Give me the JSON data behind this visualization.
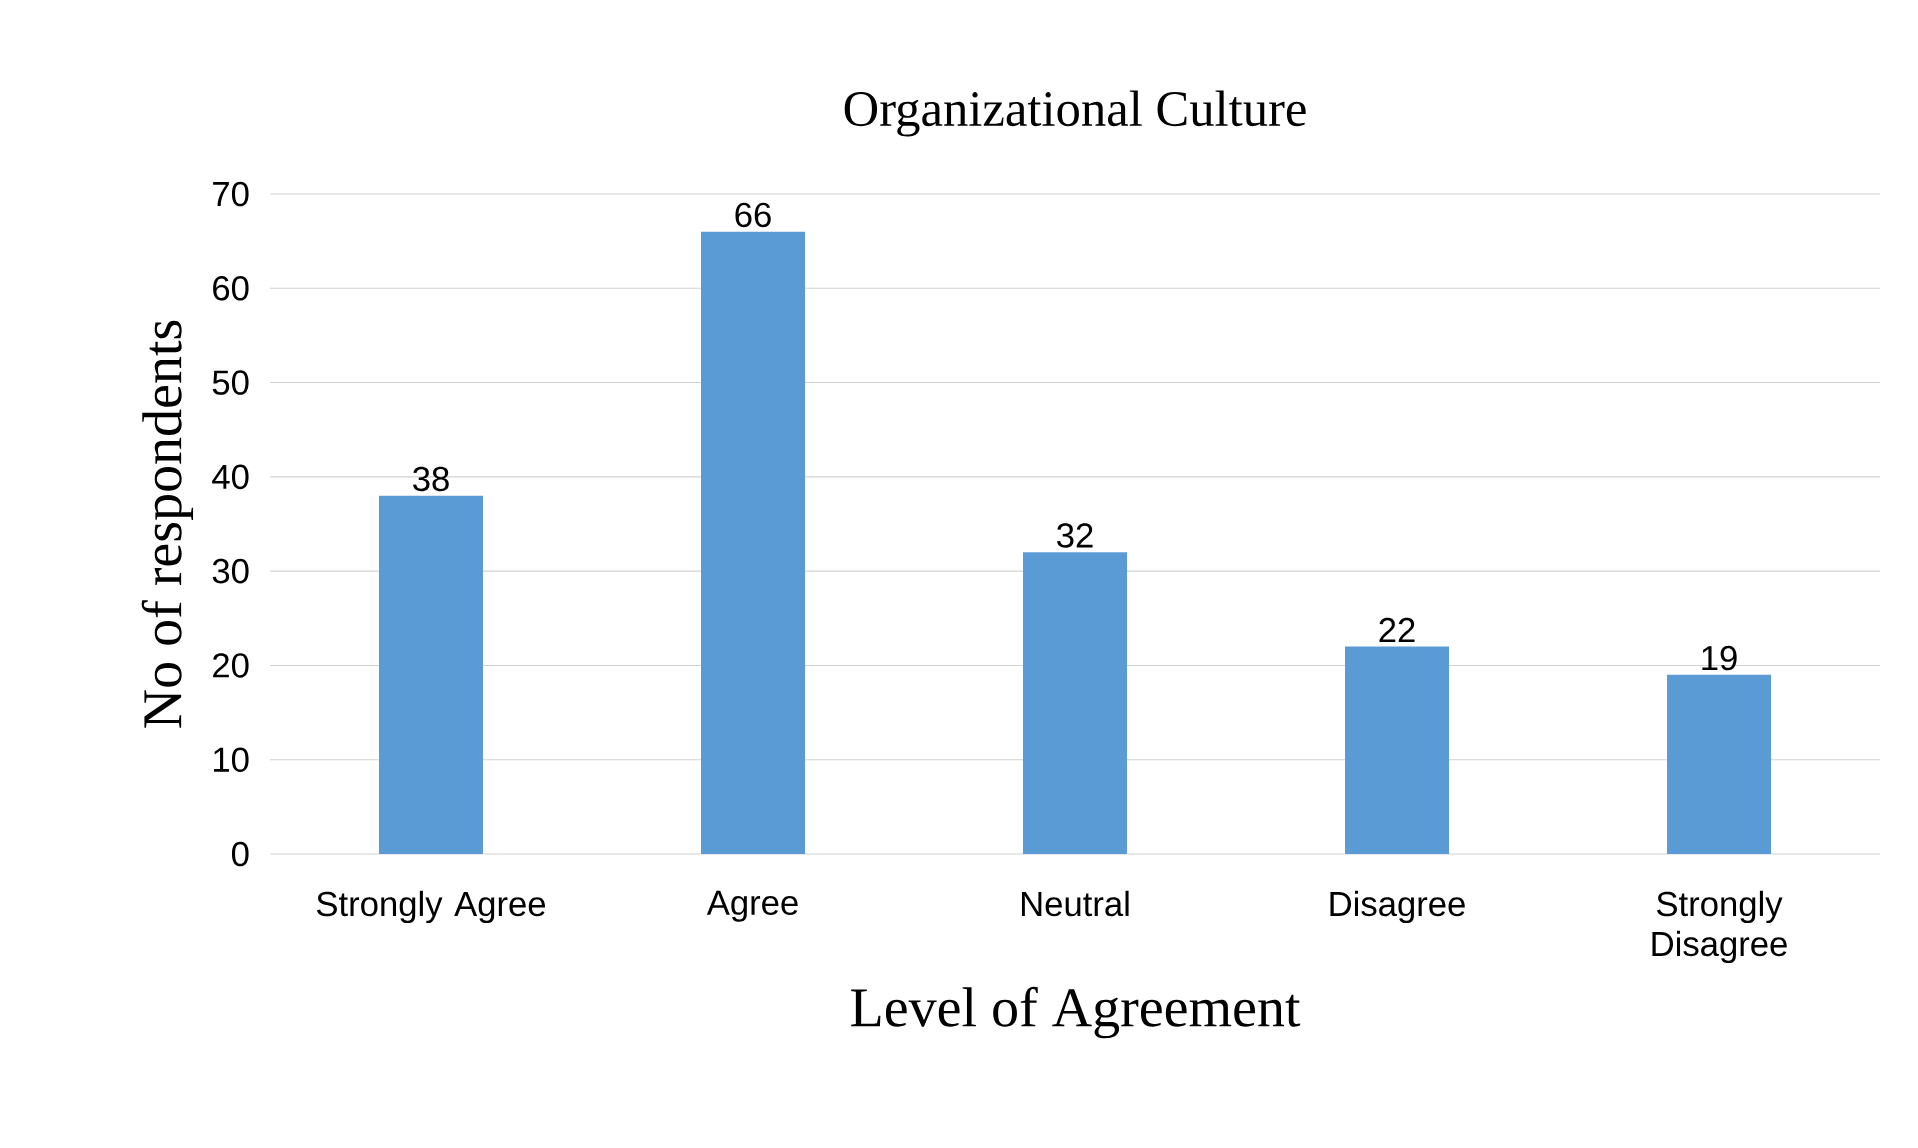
{
  "chart_data": {
    "type": "bar",
    "title": "Organizational Culture",
    "xlabel": "Level of Agreement",
    "ylabel": "No of respondents",
    "categories": [
      "Strongly Agree",
      "Agree",
      "Neutral",
      "Disagree",
      "Strongly Disagree"
    ],
    "values": [
      38,
      66,
      32,
      22,
      19
    ],
    "color": "#5b9bd5",
    "ylim": [
      0,
      70
    ],
    "yticks": [
      0,
      10,
      20,
      30,
      40,
      50,
      60,
      70
    ],
    "grid": "y",
    "data_labels": true
  }
}
